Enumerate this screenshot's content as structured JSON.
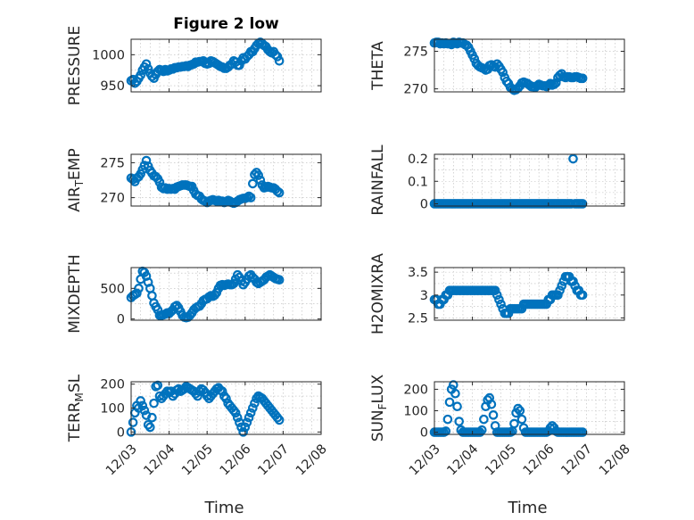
{
  "figure": {
    "marker": "circle",
    "marker_color": "#0072BD",
    "xlabel": "Time",
    "x_tick_labels": [
      "12/03",
      "12/04",
      "12/05",
      "12/06",
      "12/07",
      "12/08"
    ]
  },
  "chart_data": [
    {
      "type": "scatter",
      "title": "Figure 2 low",
      "ylabel": "PRESSURE",
      "xlabel": "",
      "xlim": [
        3,
        8
      ],
      "ylim": [
        940,
        1025
      ],
      "yticks": [
        950,
        1000
      ],
      "grid": true,
      "x": [
        3.0,
        3.05,
        3.1,
        3.15,
        3.2,
        3.25,
        3.3,
        3.35,
        3.4,
        3.45,
        3.5,
        3.55,
        3.6,
        3.65,
        3.7,
        3.75,
        3.8,
        3.85,
        3.9,
        3.95,
        4.0,
        4.05,
        4.1,
        4.15,
        4.2,
        4.25,
        4.3,
        4.35,
        4.4,
        4.45,
        4.5,
        4.55,
        4.6,
        4.65,
        4.7,
        4.75,
        4.8,
        4.85,
        4.9,
        4.95,
        5.0,
        5.05,
        5.1,
        5.15,
        5.2,
        5.25,
        5.3,
        5.35,
        5.4,
        5.45,
        5.5,
        5.55,
        5.6,
        5.65,
        5.7,
        5.75,
        5.8,
        5.85,
        5.9,
        5.95,
        6.0,
        6.05,
        6.1,
        6.15,
        6.2,
        6.25,
        6.3,
        6.35,
        6.4,
        6.45,
        6.5,
        6.55,
        6.6,
        6.65,
        6.7,
        6.75,
        6.8,
        6.85,
        6.9
      ],
      "y": [
        958,
        960,
        954,
        957,
        962,
        967,
        975,
        980,
        985,
        977,
        970,
        965,
        962,
        968,
        973,
        976,
        975,
        973,
        976,
        974,
        975,
        977,
        977,
        979,
        979,
        980,
        980,
        981,
        981,
        982,
        981,
        983,
        984,
        985,
        988,
        988,
        989,
        989,
        990,
        986,
        985,
        986,
        990,
        989,
        987,
        985,
        983,
        981,
        980,
        978,
        978,
        980,
        983,
        985,
        990,
        988,
        983,
        983,
        990,
        995,
        993,
        997,
        1000,
        1005,
        1005,
        1010,
        1015,
        1018,
        1020,
        1018,
        1015,
        1013,
        1008,
        1005,
        1003,
        1005,
        1000,
        997,
        990
      ]
    },
    {
      "type": "scatter",
      "title": "",
      "ylabel": "THETA",
      "xlabel": "",
      "xlim": [
        3,
        8
      ],
      "ylim": [
        269.6,
        276.6
      ],
      "yticks": [
        270,
        275
      ],
      "grid": true,
      "x": [
        3.0,
        3.05,
        3.1,
        3.15,
        3.2,
        3.25,
        3.3,
        3.35,
        3.4,
        3.45,
        3.5,
        3.55,
        3.6,
        3.65,
        3.7,
        3.75,
        3.8,
        3.85,
        3.9,
        3.95,
        4.0,
        4.05,
        4.1,
        4.15,
        4.2,
        4.25,
        4.3,
        4.35,
        4.4,
        4.45,
        4.5,
        4.55,
        4.6,
        4.65,
        4.7,
        4.75,
        4.8,
        4.85,
        4.9,
        4.95,
        5.0,
        5.05,
        5.1,
        5.15,
        5.2,
        5.25,
        5.3,
        5.35,
        5.4,
        5.45,
        5.5,
        5.55,
        5.6,
        5.65,
        5.7,
        5.75,
        5.8,
        5.85,
        5.9,
        5.95,
        6.0,
        6.05,
        6.1,
        6.15,
        6.2,
        6.25,
        6.3,
        6.35,
        6.4,
        6.45,
        6.5,
        6.55,
        6.6,
        6.65,
        6.7,
        6.75,
        6.8,
        6.85,
        6.9
      ],
      "y": [
        276.1,
        276.2,
        276.2,
        276.0,
        276.1,
        276.0,
        276.1,
        276.0,
        276.0,
        275.9,
        276.2,
        276.1,
        276.0,
        276.2,
        276.1,
        276.1,
        275.9,
        275.8,
        275.5,
        275.0,
        274.5,
        274.0,
        273.4,
        273.1,
        272.9,
        272.8,
        272.7,
        272.5,
        272.6,
        273.1,
        273.2,
        273.0,
        272.9,
        273.3,
        273.0,
        272.6,
        272.2,
        271.5,
        271.0,
        270.7,
        270.2,
        270.0,
        269.8,
        269.9,
        270.1,
        270.4,
        270.8,
        270.9,
        270.8,
        270.7,
        270.5,
        270.3,
        270.3,
        270.2,
        270.4,
        270.6,
        270.5,
        270.4,
        270.4,
        270.3,
        270.5,
        270.7,
        270.5,
        270.6,
        270.8,
        271.5,
        271.8,
        272.0,
        271.6,
        271.5,
        271.6,
        271.6,
        271.5,
        271.5,
        271.6,
        271.6,
        271.5,
        271.4,
        271.4
      ]
    },
    {
      "type": "scatter",
      "title": "",
      "ylabel": "AIR_TEMP",
      "xlabel": "",
      "xlim": [
        3,
        8
      ],
      "ylim": [
        268.8,
        276.2
      ],
      "yticks": [
        270,
        275
      ],
      "grid": true,
      "x": [
        3.0,
        3.05,
        3.1,
        3.15,
        3.2,
        3.25,
        3.3,
        3.35,
        3.4,
        3.45,
        3.5,
        3.55,
        3.6,
        3.65,
        3.7,
        3.75,
        3.8,
        3.85,
        3.9,
        3.95,
        4.0,
        4.05,
        4.1,
        4.15,
        4.2,
        4.25,
        4.3,
        4.35,
        4.4,
        4.45,
        4.5,
        4.55,
        4.6,
        4.65,
        4.7,
        4.75,
        4.8,
        4.85,
        4.9,
        4.95,
        5.0,
        5.05,
        5.1,
        5.15,
        5.2,
        5.25,
        5.3,
        5.35,
        5.4,
        5.45,
        5.5,
        5.55,
        5.6,
        5.65,
        5.7,
        5.75,
        5.8,
        5.85,
        5.9,
        5.95,
        6.0,
        6.05,
        6.1,
        6.15,
        6.2,
        6.25,
        6.3,
        6.35,
        6.4,
        6.45,
        6.5,
        6.55,
        6.6,
        6.65,
        6.7,
        6.75,
        6.8,
        6.85,
        6.9
      ],
      "y": [
        272.8,
        272.6,
        272.3,
        272.8,
        273.0,
        273.4,
        274.0,
        274.6,
        275.3,
        274.5,
        273.9,
        273.5,
        273.1,
        273.0,
        272.7,
        272.2,
        271.5,
        271.3,
        271.4,
        271.2,
        271.3,
        271.2,
        271.3,
        271.2,
        271.5,
        271.6,
        271.7,
        271.8,
        271.8,
        271.8,
        271.7,
        271.6,
        271.6,
        271.0,
        270.5,
        270.3,
        270.2,
        269.8,
        269.6,
        269.5,
        269.3,
        269.5,
        269.6,
        269.7,
        269.6,
        269.5,
        269.6,
        269.5,
        269.5,
        269.3,
        269.4,
        269.6,
        269.5,
        269.3,
        269.2,
        269.3,
        269.5,
        269.7,
        269.8,
        269.9,
        269.9,
        270.0,
        270.2,
        270.0,
        272.0,
        273.3,
        273.6,
        273.2,
        272.5,
        271.8,
        271.4,
        271.5,
        271.6,
        271.5,
        271.4,
        271.4,
        271.2,
        270.9,
        270.7
      ]
    },
    {
      "type": "scatter",
      "title": "",
      "ylabel": "RAINFALL",
      "xlabel": "",
      "xlim": [
        3,
        8
      ],
      "ylim": [
        -0.01,
        0.22
      ],
      "yticks": [
        0,
        0.1,
        0.2
      ],
      "grid": true,
      "x": [
        3.0,
        3.05,
        3.1,
        3.15,
        3.2,
        3.25,
        3.3,
        3.35,
        3.4,
        3.45,
        3.5,
        3.55,
        3.6,
        3.65,
        3.7,
        3.75,
        3.8,
        3.85,
        3.9,
        3.95,
        4.0,
        4.05,
        4.1,
        4.15,
        4.2,
        4.25,
        4.3,
        4.35,
        4.4,
        4.45,
        4.5,
        4.55,
        4.6,
        4.65,
        4.7,
        4.75,
        4.8,
        4.85,
        4.9,
        4.95,
        5.0,
        5.05,
        5.1,
        5.15,
        5.2,
        5.25,
        5.3,
        5.35,
        5.4,
        5.45,
        5.5,
        5.55,
        5.6,
        5.65,
        5.7,
        5.75,
        5.8,
        5.85,
        5.9,
        5.95,
        6.0,
        6.05,
        6.1,
        6.15,
        6.2,
        6.25,
        6.3,
        6.35,
        6.4,
        6.45,
        6.5,
        6.55,
        6.6,
        6.65,
        6.7,
        6.75,
        6.8,
        6.85,
        6.9
      ],
      "y": [
        0,
        0,
        0,
        0,
        0,
        0,
        0,
        0,
        0,
        0,
        0,
        0,
        0,
        0,
        0,
        0,
        0,
        0,
        0,
        0,
        0,
        0,
        0,
        0,
        0,
        0,
        0,
        0,
        0,
        0,
        0,
        0,
        0,
        0,
        0,
        0,
        0,
        0,
        0,
        0,
        0,
        0,
        0,
        0,
        0,
        0,
        0,
        0,
        0,
        0,
        0,
        0,
        0,
        0,
        0,
        0,
        0,
        0,
        0,
        0,
        0,
        0,
        0,
        0,
        0,
        0,
        0,
        0,
        0,
        0,
        0,
        0,
        0,
        0.2,
        0,
        0,
        0,
        0,
        0
      ]
    },
    {
      "type": "scatter",
      "title": "",
      "ylabel": "MIXDEPTH",
      "xlabel": "",
      "xlim": [
        3,
        8
      ],
      "ylim": [
        -20,
        840
      ],
      "yticks": [
        0,
        500
      ],
      "grid": true,
      "x": [
        3.0,
        3.05,
        3.1,
        3.15,
        3.2,
        3.25,
        3.3,
        3.35,
        3.4,
        3.45,
        3.5,
        3.55,
        3.6,
        3.65,
        3.7,
        3.75,
        3.8,
        3.85,
        3.9,
        3.95,
        4.0,
        4.05,
        4.1,
        4.15,
        4.2,
        4.25,
        4.3,
        4.35,
        4.4,
        4.45,
        4.5,
        4.55,
        4.6,
        4.65,
        4.7,
        4.75,
        4.8,
        4.85,
        4.9,
        4.95,
        5.0,
        5.05,
        5.1,
        5.15,
        5.2,
        5.25,
        5.3,
        5.35,
        5.4,
        5.45,
        5.5,
        5.55,
        5.6,
        5.65,
        5.7,
        5.75,
        5.8,
        5.85,
        5.9,
        5.95,
        6.0,
        6.05,
        6.1,
        6.15,
        6.2,
        6.25,
        6.3,
        6.35,
        6.4,
        6.45,
        6.5,
        6.55,
        6.6,
        6.65,
        6.7,
        6.75,
        6.8,
        6.85,
        6.9
      ],
      "y": [
        350,
        380,
        400,
        420,
        500,
        650,
        780,
        760,
        700,
        600,
        500,
        380,
        260,
        200,
        150,
        60,
        60,
        70,
        80,
        100,
        90,
        120,
        150,
        200,
        220,
        180,
        120,
        60,
        30,
        20,
        30,
        60,
        100,
        150,
        180,
        200,
        210,
        250,
        300,
        320,
        330,
        360,
        380,
        370,
        390,
        430,
        500,
        550,
        560,
        550,
        560,
        570,
        560,
        560,
        580,
        650,
        720,
        680,
        620,
        560,
        600,
        650,
        700,
        720,
        680,
        650,
        600,
        580,
        600,
        620,
        640,
        680,
        700,
        720,
        700,
        680,
        660,
        650,
        640
      ]
    },
    {
      "type": "scatter",
      "title": "",
      "ylabel": "H2OMIXRA",
      "xlabel": "",
      "xlim": [
        3,
        8
      ],
      "ylim": [
        2.45,
        3.6
      ],
      "yticks": [
        2.5,
        3,
        3.5
      ],
      "grid": true,
      "x": [
        3.0,
        3.05,
        3.1,
        3.15,
        3.2,
        3.25,
        3.3,
        3.35,
        3.4,
        3.45,
        3.5,
        3.55,
        3.6,
        3.65,
        3.7,
        3.75,
        3.8,
        3.85,
        3.9,
        3.95,
        4.0,
        4.05,
        4.1,
        4.15,
        4.2,
        4.25,
        4.3,
        4.35,
        4.4,
        4.45,
        4.5,
        4.55,
        4.6,
        4.65,
        4.7,
        4.75,
        4.8,
        4.85,
        4.9,
        4.95,
        5.0,
        5.05,
        5.1,
        5.15,
        5.2,
        5.25,
        5.3,
        5.35,
        5.4,
        5.45,
        5.5,
        5.55,
        5.6,
        5.65,
        5.7,
        5.75,
        5.8,
        5.85,
        5.9,
        5.95,
        6.0,
        6.05,
        6.1,
        6.15,
        6.2,
        6.25,
        6.3,
        6.35,
        6.4,
        6.45,
        6.5,
        6.55,
        6.6,
        6.65,
        6.7,
        6.75,
        6.8,
        6.85,
        6.9
      ],
      "y": [
        2.9,
        2.9,
        2.8,
        2.8,
        2.9,
        2.9,
        3.0,
        3.0,
        3.1,
        3.1,
        3.1,
        3.1,
        3.1,
        3.1,
        3.1,
        3.1,
        3.1,
        3.1,
        3.1,
        3.1,
        3.1,
        3.1,
        3.1,
        3.1,
        3.1,
        3.1,
        3.1,
        3.1,
        3.1,
        3.1,
        3.1,
        3.1,
        3.1,
        3.0,
        2.9,
        2.8,
        2.7,
        2.6,
        2.6,
        2.6,
        2.7,
        2.7,
        2.7,
        2.7,
        2.7,
        2.7,
        2.7,
        2.8,
        2.8,
        2.8,
        2.8,
        2.8,
        2.8,
        2.8,
        2.8,
        2.8,
        2.8,
        2.8,
        2.8,
        2.8,
        2.9,
        2.9,
        3.0,
        3.0,
        3.0,
        3.0,
        3.1,
        3.2,
        3.3,
        3.4,
        3.4,
        3.4,
        3.3,
        3.3,
        3.2,
        3.1,
        3.1,
        3.0,
        3.0
      ]
    },
    {
      "type": "scatter",
      "title": "",
      "ylabel": "TERR_MSL",
      "xlabel": "",
      "xlim": [
        3,
        8
      ],
      "ylim": [
        -10,
        210
      ],
      "yticks": [
        0,
        100,
        200
      ],
      "grid": true,
      "x": [
        3.0,
        3.05,
        3.1,
        3.15,
        3.2,
        3.25,
        3.3,
        3.35,
        3.4,
        3.45,
        3.5,
        3.55,
        3.6,
        3.65,
        3.7,
        3.75,
        3.8,
        3.85,
        3.9,
        3.95,
        4.0,
        4.05,
        4.1,
        4.15,
        4.2,
        4.25,
        4.3,
        4.35,
        4.4,
        4.45,
        4.5,
        4.55,
        4.6,
        4.65,
        4.7,
        4.75,
        4.8,
        4.85,
        4.9,
        4.95,
        5.0,
        5.05,
        5.1,
        5.15,
        5.2,
        5.25,
        5.3,
        5.35,
        5.4,
        5.45,
        5.5,
        5.55,
        5.6,
        5.65,
        5.7,
        5.75,
        5.8,
        5.85,
        5.9,
        5.95,
        6.0,
        6.05,
        6.1,
        6.15,
        6.2,
        6.25,
        6.3,
        6.35,
        6.4,
        6.45,
        6.5,
        6.55,
        6.6,
        6.65,
        6.7,
        6.75,
        6.8,
        6.85,
        6.9
      ],
      "y": [
        0,
        40,
        80,
        110,
        100,
        130,
        110,
        90,
        70,
        30,
        20,
        60,
        120,
        190,
        195,
        150,
        140,
        150,
        160,
        170,
        165,
        170,
        150,
        160,
        175,
        180,
        170,
        175,
        180,
        190,
        185,
        180,
        175,
        170,
        160,
        150,
        170,
        180,
        175,
        165,
        150,
        140,
        150,
        160,
        170,
        180,
        185,
        175,
        170,
        150,
        140,
        120,
        110,
        100,
        90,
        80,
        60,
        40,
        20,
        0,
        20,
        40,
        60,
        80,
        100,
        120,
        140,
        150,
        145,
        140,
        130,
        120,
        110,
        100,
        90,
        80,
        70,
        60,
        50
      ]
    },
    {
      "type": "scatter",
      "title": "",
      "ylabel": "SUN_FLUX",
      "xlabel": "",
      "xlim": [
        3,
        8
      ],
      "ylim": [
        -10,
        235
      ],
      "yticks": [
        0,
        100,
        200
      ],
      "grid": true,
      "x": [
        3.0,
        3.05,
        3.1,
        3.15,
        3.2,
        3.25,
        3.3,
        3.35,
        3.4,
        3.45,
        3.5,
        3.55,
        3.6,
        3.65,
        3.7,
        3.75,
        3.8,
        3.85,
        3.9,
        3.95,
        4.0,
        4.05,
        4.1,
        4.15,
        4.2,
        4.25,
        4.3,
        4.35,
        4.4,
        4.45,
        4.5,
        4.55,
        4.6,
        4.65,
        4.7,
        4.75,
        4.8,
        4.85,
        4.9,
        4.95,
        5.0,
        5.05,
        5.1,
        5.15,
        5.2,
        5.25,
        5.3,
        5.35,
        5.4,
        5.45,
        5.5,
        5.55,
        5.6,
        5.65,
        5.7,
        5.75,
        5.8,
        5.85,
        5.9,
        5.95,
        6.0,
        6.05,
        6.1,
        6.15,
        6.2,
        6.25,
        6.3,
        6.35,
        6.4,
        6.45,
        6.5,
        6.55,
        6.6,
        6.65,
        6.7,
        6.75,
        6.8,
        6.85,
        6.9
      ],
      "y": [
        0,
        0,
        0,
        0,
        0,
        0,
        5,
        60,
        140,
        200,
        220,
        180,
        120,
        50,
        10,
        0,
        0,
        0,
        0,
        0,
        0,
        0,
        0,
        0,
        0,
        10,
        60,
        120,
        150,
        160,
        130,
        80,
        30,
        0,
        0,
        0,
        0,
        0,
        0,
        0,
        0,
        5,
        40,
        90,
        110,
        100,
        60,
        20,
        0,
        0,
        0,
        0,
        0,
        0,
        0,
        0,
        0,
        0,
        0,
        0,
        5,
        20,
        30,
        20,
        5,
        0,
        0,
        0,
        0,
        0,
        0,
        0,
        0,
        0,
        0,
        0,
        0,
        0,
        0
      ]
    }
  ]
}
